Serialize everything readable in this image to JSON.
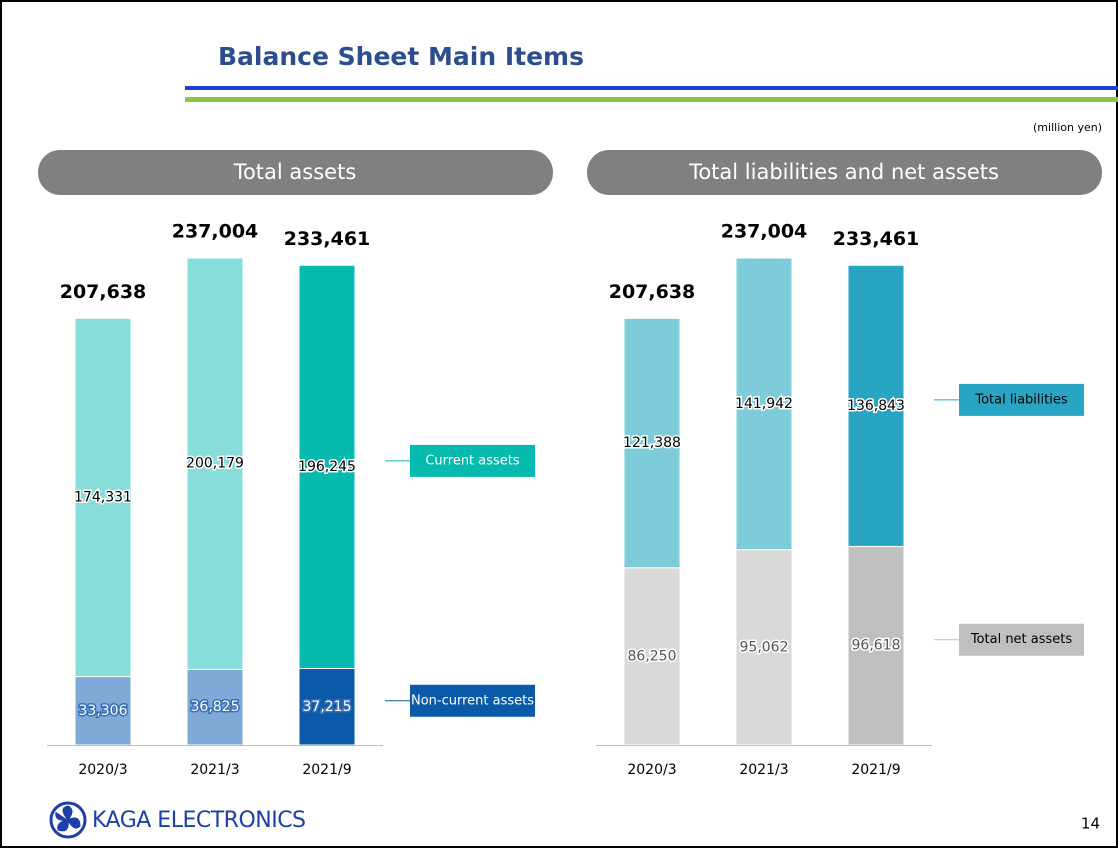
{
  "page": {
    "title": "Balance Sheet Main Items",
    "unit": "(million yen)",
    "logo": "KAGA ELECTRONICS",
    "page_number": "14"
  },
  "chart_data": [
    {
      "type": "stacked_bar",
      "title": "Total assets",
      "categories": [
        "2020/3",
        "2021/3",
        "2021/9"
      ],
      "totals": [
        207638,
        237004,
        233461
      ],
      "total_labels": [
        "207,638",
        "237,004",
        "233,461"
      ],
      "series": [
        {
          "name": "Non-current assets",
          "colors": [
            "#7faad7",
            "#7faad7",
            "#0b5aa9"
          ],
          "label_style": "light",
          "values": [
            33306,
            36825,
            37215
          ],
          "value_labels": [
            "33,306",
            "36,825",
            "37,215"
          ]
        },
        {
          "name": "Current assets",
          "colors": [
            "#86ddd9",
            "#86ddd9",
            "#07baae"
          ],
          "label_style": "dark",
          "values": [
            174331,
            200179,
            196245
          ],
          "value_labels": [
            "174,331",
            "200,179",
            "196,245"
          ]
        }
      ]
    },
    {
      "type": "stacked_bar",
      "title": "Total liabilities and net assets",
      "categories": [
        "2020/3",
        "2021/3",
        "2021/9"
      ],
      "totals": [
        207638,
        237004,
        233461
      ],
      "total_labels": [
        "207,638",
        "237,004",
        "233,461"
      ],
      "series": [
        {
          "name": "Total net assets",
          "colors": [
            "#d9d9d9",
            "#d9d9d9",
            "#bfbfbf"
          ],
          "label_style": "gray",
          "values": [
            86250,
            95062,
            96618
          ],
          "value_labels": [
            "86,250",
            "95,062",
            "96,618"
          ]
        },
        {
          "name": "Total liabilities",
          "colors": [
            "#7ecbda",
            "#7ecbda",
            "#27a5c3"
          ],
          "label_style": "dark",
          "values": [
            121388,
            141942,
            136843
          ],
          "value_labels": [
            "121,388",
            "141,942",
            "136,843"
          ]
        }
      ]
    }
  ]
}
